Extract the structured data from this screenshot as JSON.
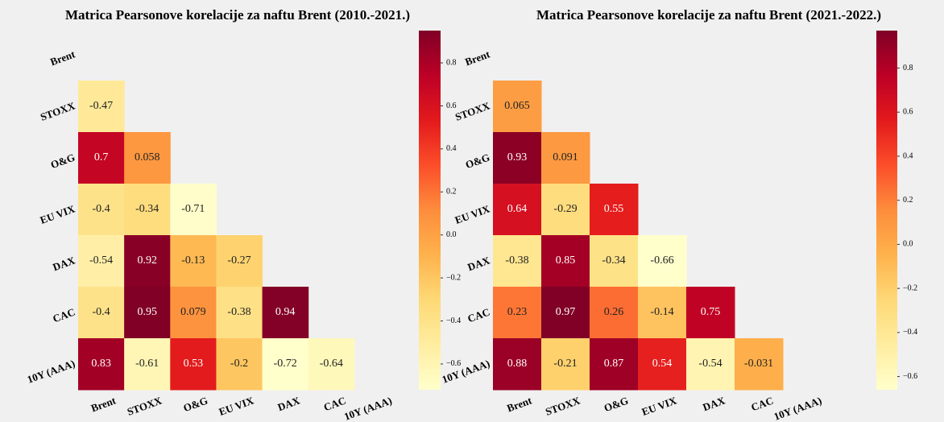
{
  "chart_data": [
    {
      "type": "heatmap",
      "title": "Matrica Pearsonove korelacije za naftu Brent (2010.-2021.)",
      "x_labels": [
        "Brent",
        "STOXX",
        "O&G",
        "EU VIX",
        "DAX",
        "CAC",
        "10Y (AAA)"
      ],
      "y_labels": [
        "Brent",
        "STOXX",
        "O&G",
        "EU VIX",
        "DAX",
        "CAC",
        "10Y (AAA)"
      ],
      "values": [
        [
          null,
          null,
          null,
          null,
          null,
          null,
          null
        ],
        [
          -0.47,
          null,
          null,
          null,
          null,
          null,
          null
        ],
        [
          0.7,
          0.058,
          null,
          null,
          null,
          null,
          null
        ],
        [
          -0.4,
          -0.34,
          -0.71,
          null,
          null,
          null,
          null
        ],
        [
          -0.54,
          0.92,
          -0.13,
          -0.27,
          null,
          null,
          null
        ],
        [
          -0.4,
          0.95,
          0.079,
          -0.38,
          0.94,
          null,
          null
        ],
        [
          0.83,
          -0.61,
          0.53,
          -0.2,
          -0.72,
          -0.64,
          null
        ]
      ],
      "colormap": "YlOrRd",
      "clim": [
        -0.72,
        0.95
      ],
      "cticks": [
        {
          "value": 0.8,
          "label": "0.8"
        },
        {
          "value": 0.6,
          "label": "0.6"
        },
        {
          "value": 0.4,
          "label": "0.4"
        },
        {
          "value": 0.2,
          "label": "0.2"
        },
        {
          "value": 0,
          "label": "0.0"
        },
        {
          "value": -0.2,
          "label": "−0.2"
        },
        {
          "value": -0.4,
          "label": "−0.4"
        },
        {
          "value": -0.6,
          "label": "−0.6"
        }
      ]
    },
    {
      "type": "heatmap",
      "title": "Matrica Pearsonove korelacije za naftu Brent (2021.-2022.)",
      "x_labels": [
        "Brent",
        "STOXX",
        "O&G",
        "EU VIX",
        "DAX",
        "CAC",
        "10Y (AAA)"
      ],
      "y_labels": [
        "Brent",
        "STOXX",
        "O&G",
        "EU VIX",
        "DAX",
        "CAC",
        "10Y (AAA)"
      ],
      "values": [
        [
          null,
          null,
          null,
          null,
          null,
          null,
          null
        ],
        [
          0.065,
          null,
          null,
          null,
          null,
          null,
          null
        ],
        [
          0.93,
          0.091,
          null,
          null,
          null,
          null,
          null
        ],
        [
          0.64,
          -0.29,
          0.55,
          null,
          null,
          null,
          null
        ],
        [
          -0.38,
          0.85,
          -0.34,
          -0.66,
          null,
          null,
          null
        ],
        [
          0.23,
          0.97,
          0.26,
          -0.14,
          0.75,
          null,
          null
        ],
        [
          0.88,
          -0.21,
          0.87,
          0.54,
          -0.54,
          -0.031,
          null
        ]
      ],
      "colormap": "YlOrRd",
      "clim": [
        -0.66,
        0.97
      ],
      "cticks": [
        {
          "value": 0.8,
          "label": "0.8"
        },
        {
          "value": 0.6,
          "label": "0.6"
        },
        {
          "value": 0.4,
          "label": "0.4"
        },
        {
          "value": 0.2,
          "label": "0.2"
        },
        {
          "value": 0,
          "label": "0.0"
        },
        {
          "value": -0.2,
          "label": "−0.2"
        },
        {
          "value": -0.4,
          "label": "−0.4"
        },
        {
          "value": -0.6,
          "label": "−0.6"
        }
      ]
    }
  ]
}
